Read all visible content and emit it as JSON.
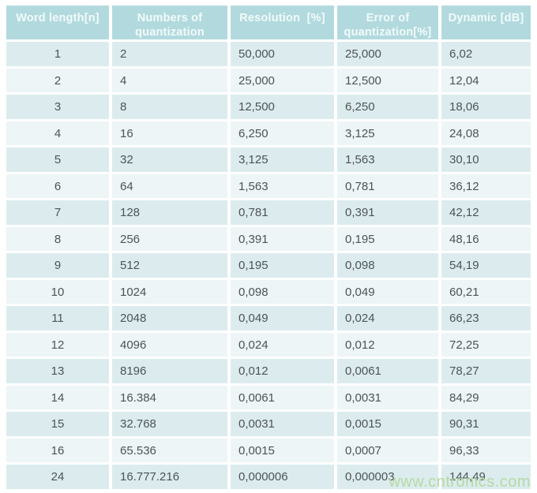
{
  "chart_data": {
    "type": "table",
    "title": "",
    "columns": [
      "Word length[n]",
      "Numbers of quantization",
      "Resolution  [%]",
      "Error of quantization[%]",
      "Dynamic [dB]"
    ],
    "rows": [
      [
        "1",
        "2",
        "50,000",
        "25,000",
        "6,02"
      ],
      [
        "2",
        "4",
        "25,000",
        "12,500",
        "12,04"
      ],
      [
        "3",
        "8",
        "12,500",
        "6,250",
        "18,06"
      ],
      [
        "4",
        "16",
        "6,250",
        "3,125",
        "24,08"
      ],
      [
        "5",
        "32",
        "3,125",
        "1,563",
        "30,10"
      ],
      [
        "6",
        "64",
        "1,563",
        "0,781",
        "36,12"
      ],
      [
        "7",
        "128",
        "0,781",
        "0,391",
        "42,12"
      ],
      [
        "8",
        "256",
        "0,391",
        "0,195",
        "48,16"
      ],
      [
        "9",
        "512",
        "0,195",
        "0,098",
        "54,19"
      ],
      [
        "10",
        "1024",
        "0,098",
        "0,049",
        "60,21"
      ],
      [
        "11",
        "2048",
        "0,049",
        "0,024",
        "66,23"
      ],
      [
        "12",
        "4096",
        "0,024",
        "0,012",
        "72,25"
      ],
      [
        "13",
        "8196",
        "0,012",
        "0,0061",
        "78,27"
      ],
      [
        "14",
        "16.384",
        "0,0061",
        "0,0031",
        "84,29"
      ],
      [
        "15",
        "32.768",
        "0,0031",
        "0,0015",
        "90,31"
      ],
      [
        "16",
        "65.536",
        "0,0015",
        "0,0007",
        "96,33"
      ],
      [
        "24",
        "16.777.216",
        "0,000006",
        "0,000003",
        "144,49"
      ]
    ]
  },
  "watermark": "www.cntronics.com",
  "colors": {
    "header_bg": "#b2dade",
    "row_odd_bg": "#dcecee",
    "row_even_bg": "#edf5f6",
    "cell_text": "#4d5357",
    "header_text": "#f2fafa",
    "watermark_text": "#b5d9a4",
    "page_bg": "#ffffff"
  }
}
